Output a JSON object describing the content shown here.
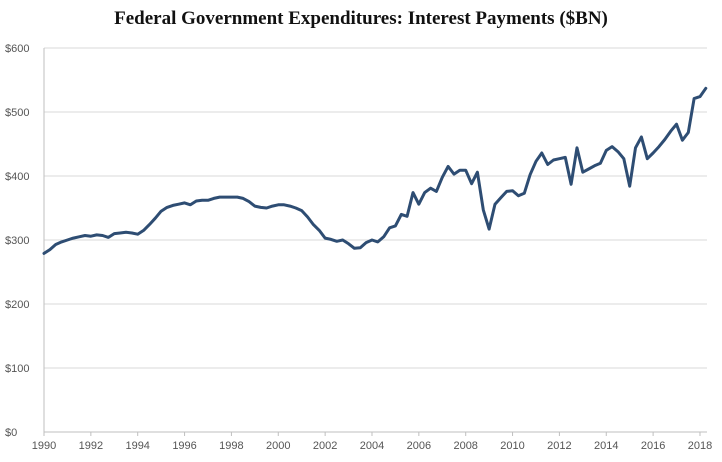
{
  "chart_data": {
    "type": "line",
    "title": "Federal Government Expenditures: Interest Payments ($BN)",
    "xlabel": "",
    "ylabel": "",
    "xlim": [
      1990,
      2018.3
    ],
    "ylim": [
      0,
      600
    ],
    "y_ticks": [
      0,
      100,
      200,
      300,
      400,
      500,
      600
    ],
    "y_tick_labels": [
      "$0",
      "$100",
      "$200",
      "$300",
      "$400",
      "$500",
      "$600"
    ],
    "x_ticks": [
      1990,
      1992,
      1994,
      1996,
      1998,
      2000,
      2002,
      2004,
      2006,
      2008,
      2010,
      2012,
      2014,
      2016,
      2018
    ],
    "x_tick_labels": [
      "1990",
      "1992",
      "1994",
      "1996",
      "1998",
      "2000",
      "2002",
      "2004",
      "2006",
      "2008",
      "2010",
      "2012",
      "2014",
      "2016",
      "2018"
    ],
    "grid": "horizontal",
    "legend": "none",
    "line_color": "#2e4d73",
    "series": [
      {
        "x": [
          1990.0,
          1990.25,
          1990.5,
          1990.75,
          1991.0,
          1991.25,
          1991.5,
          1991.75,
          1992.0,
          1992.25,
          1992.5,
          1992.75,
          1993.0,
          1993.25,
          1993.5,
          1993.75,
          1994.0,
          1994.25,
          1994.5,
          1994.75,
          1995.0,
          1995.25,
          1995.5,
          1995.75,
          1996.0,
          1996.25,
          1996.5,
          1996.75,
          1997.0,
          1997.25,
          1997.5,
          1997.75,
          1998.0,
          1998.25,
          1998.5,
          1998.75,
          1999.0,
          1999.25,
          1999.5,
          1999.75,
          2000.0,
          2000.25,
          2000.5,
          2000.75,
          2001.0,
          2001.25,
          2001.5,
          2001.75,
          2002.0,
          2002.25,
          2002.5,
          2002.75,
          2003.0,
          2003.25,
          2003.5,
          2003.75,
          2004.0,
          2004.25,
          2004.5,
          2004.75,
          2005.0,
          2005.25,
          2005.5,
          2005.75,
          2006.0,
          2006.25,
          2006.5,
          2006.75,
          2007.0,
          2007.25,
          2007.5,
          2007.75,
          2008.0,
          2008.25,
          2008.5,
          2008.75,
          2009.0,
          2009.25,
          2009.5,
          2009.75,
          2010.0,
          2010.25,
          2010.5,
          2010.75,
          2011.0,
          2011.25,
          2011.5,
          2011.75,
          2012.0,
          2012.25,
          2012.5,
          2012.75,
          2013.0,
          2013.25,
          2013.5,
          2013.75,
          2014.0,
          2014.25,
          2014.5,
          2014.75,
          2015.0,
          2015.25,
          2015.5,
          2015.75,
          2016.0,
          2016.25,
          2016.5,
          2016.75,
          2017.0,
          2017.25,
          2017.5,
          2017.75,
          2018.0,
          2018.25
        ],
        "values": [
          279,
          285,
          293,
          297,
          300,
          303,
          305,
          307,
          306,
          308,
          307,
          304,
          310,
          311,
          312,
          311,
          309,
          315,
          324,
          334,
          345,
          351,
          354,
          356,
          358,
          355,
          361,
          362,
          362,
          365,
          367,
          367,
          367,
          367,
          365,
          360,
          353,
          351,
          350,
          353,
          355,
          355,
          353,
          350,
          346,
          336,
          324,
          315,
          303,
          301,
          298,
          300,
          294,
          287,
          288,
          296,
          300,
          297,
          305,
          319,
          322,
          340,
          337,
          374,
          356,
          374,
          381,
          376,
          398,
          415,
          403,
          409,
          409,
          388,
          406,
          347,
          317,
          356,
          366,
          376,
          377,
          369,
          373,
          402,
          423,
          436,
          418,
          425,
          427,
          429,
          387,
          444,
          406,
          411,
          416,
          420,
          440,
          446,
          438,
          427,
          384,
          444,
          461,
          427,
          436,
          446,
          457,
          470,
          481,
          456,
          468,
          521,
          524,
          537
        ]
      }
    ]
  }
}
